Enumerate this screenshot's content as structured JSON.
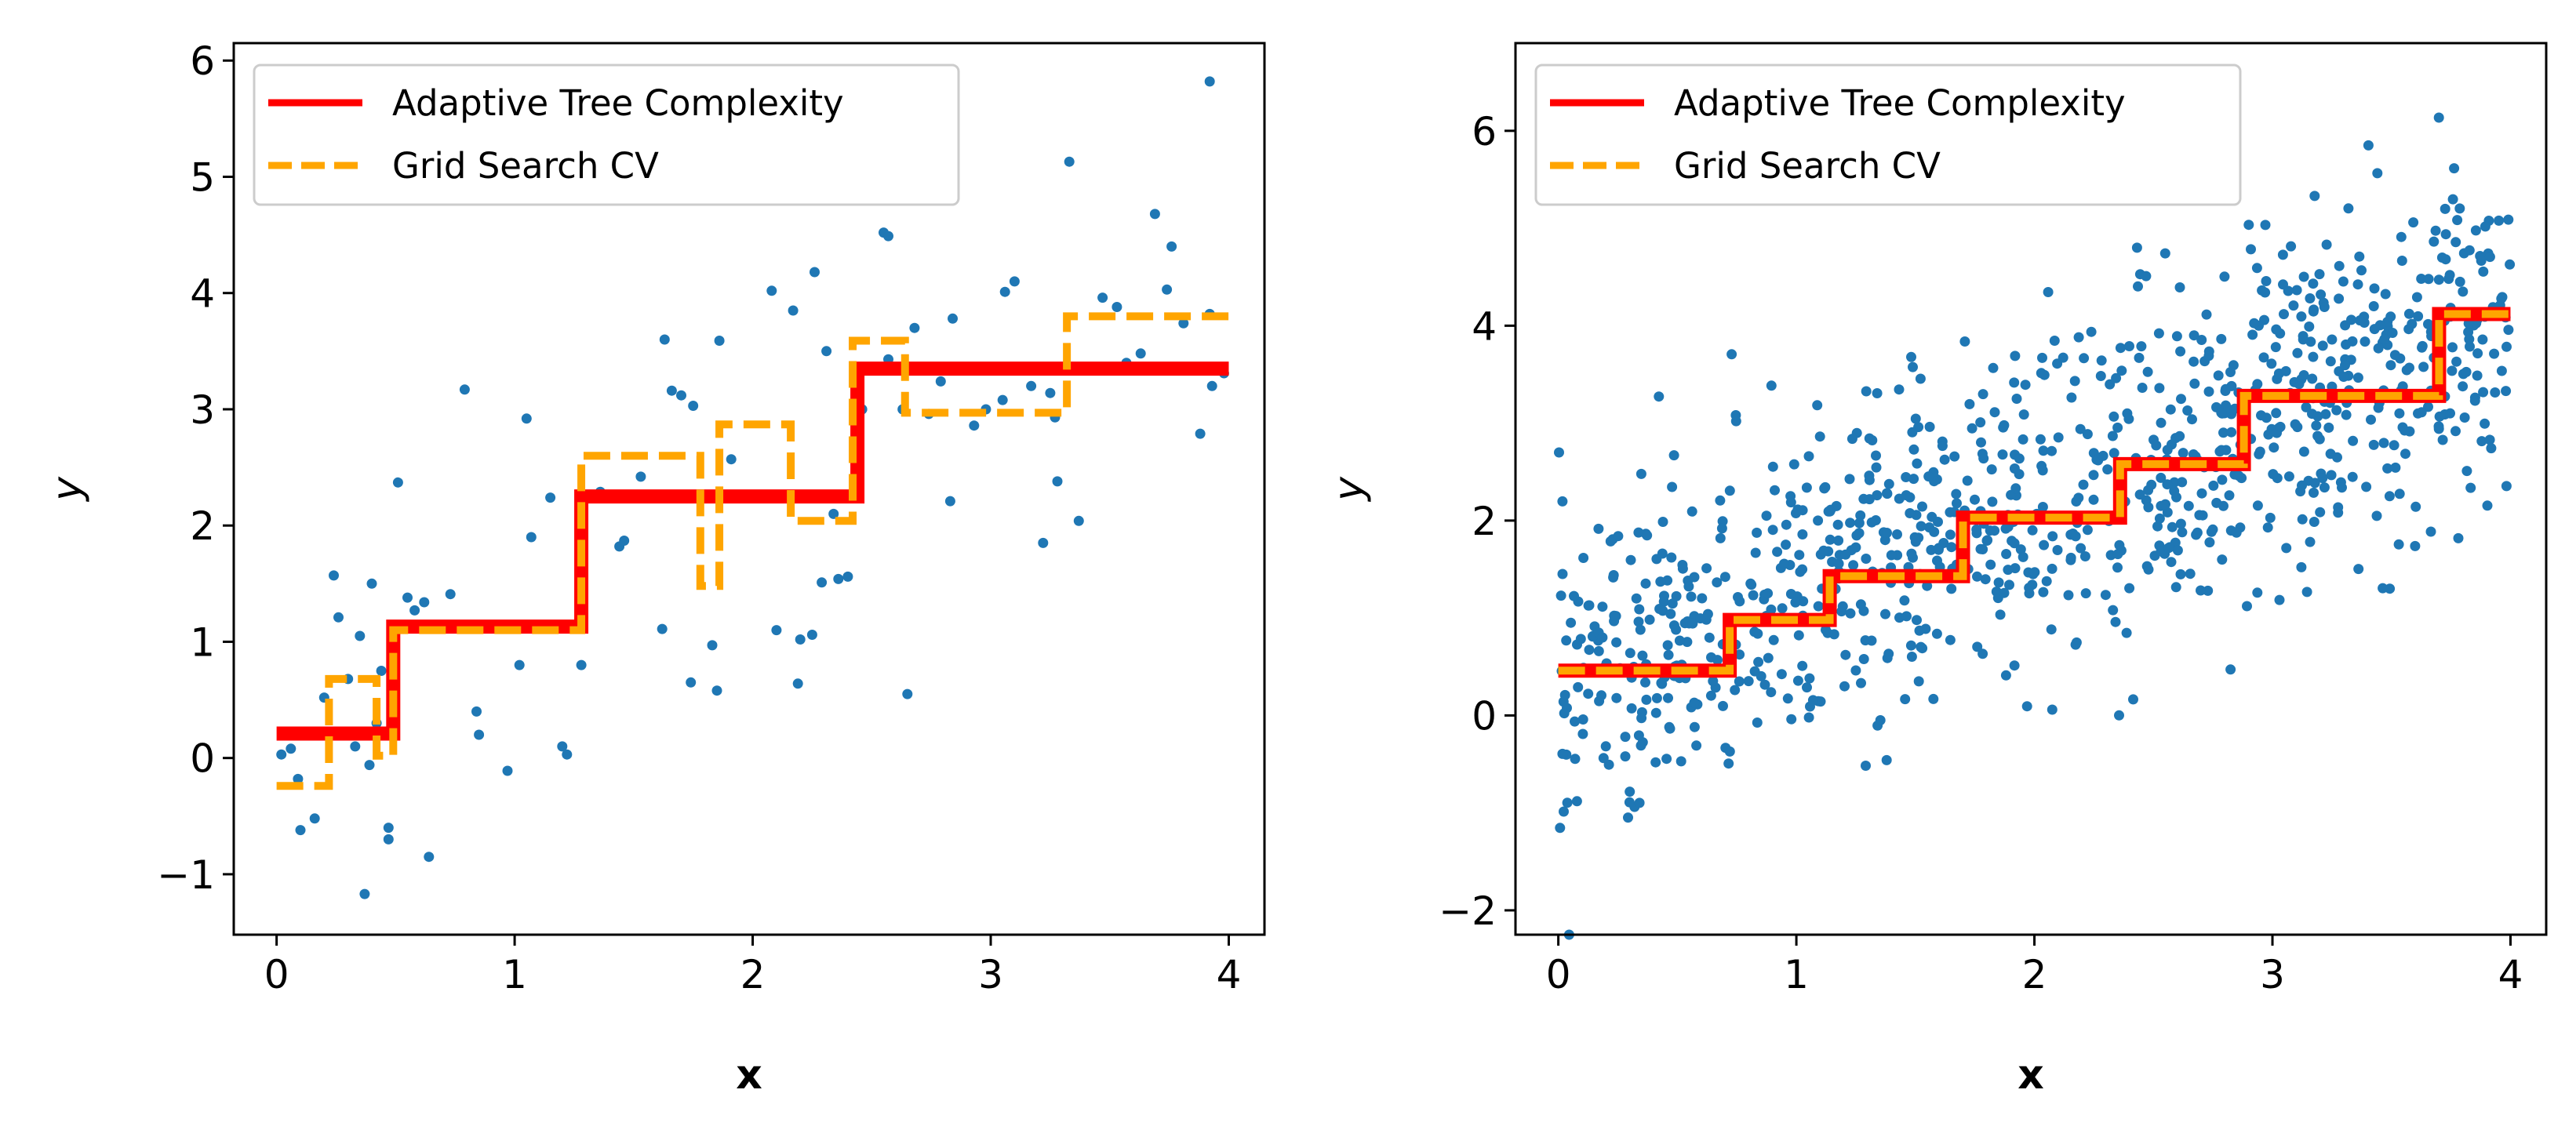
{
  "chart_data": [
    {
      "type": "scatter",
      "xlabel": "x",
      "ylabel": "y",
      "xlim": [
        -0.18,
        4.15
      ],
      "ylim": [
        -1.52,
        6.15
      ],
      "xticks": [
        0,
        1,
        2,
        3,
        4
      ],
      "yticks": [
        -1,
        0,
        1,
        2,
        3,
        4,
        5,
        6
      ],
      "grid": false,
      "legend_position": "top-left",
      "scatter_color": "#1f77b4",
      "points": [
        [
          0.02,
          0.03
        ],
        [
          0.06,
          0.08
        ],
        [
          0.09,
          -0.18
        ],
        [
          0.1,
          -0.62
        ],
        [
          0.13,
          0.22
        ],
        [
          0.16,
          -0.52
        ],
        [
          0.2,
          0.52
        ],
        [
          0.24,
          1.57
        ],
        [
          0.26,
          1.21
        ],
        [
          0.3,
          0.68
        ],
        [
          0.33,
          0.1
        ],
        [
          0.35,
          1.05
        ],
        [
          0.37,
          -1.17
        ],
        [
          0.39,
          -0.06
        ],
        [
          0.4,
          1.5
        ],
        [
          0.42,
          0.3
        ],
        [
          0.44,
          0.75
        ],
        [
          0.47,
          -0.6
        ],
        [
          0.47,
          -0.7
        ],
        [
          0.51,
          2.37
        ],
        [
          0.55,
          1.38
        ],
        [
          0.58,
          1.27
        ],
        [
          0.62,
          1.34
        ],
        [
          0.64,
          -0.85
        ],
        [
          0.73,
          1.41
        ],
        [
          0.79,
          3.17
        ],
        [
          0.84,
          0.4
        ],
        [
          0.85,
          0.2
        ],
        [
          0.97,
          -0.11
        ],
        [
          1.02,
          0.8
        ],
        [
          1.05,
          2.92
        ],
        [
          1.07,
          1.9
        ],
        [
          1.15,
          2.24
        ],
        [
          1.2,
          0.1
        ],
        [
          1.22,
          0.03
        ],
        [
          1.28,
          0.8
        ],
        [
          1.36,
          2.29
        ],
        [
          1.44,
          1.82
        ],
        [
          1.46,
          1.87
        ],
        [
          1.53,
          2.42
        ],
        [
          1.62,
          1.11
        ],
        [
          1.63,
          3.6
        ],
        [
          1.66,
          3.16
        ],
        [
          1.7,
          3.12
        ],
        [
          1.74,
          0.65
        ],
        [
          1.75,
          3.03
        ],
        [
          1.83,
          0.97
        ],
        [
          1.85,
          0.58
        ],
        [
          1.86,
          3.59
        ],
        [
          1.91,
          2.57
        ],
        [
          1.95,
          2.25
        ],
        [
          2.08,
          4.02
        ],
        [
          2.1,
          1.1
        ],
        [
          2.17,
          3.85
        ],
        [
          2.19,
          0.64
        ],
        [
          2.2,
          1.02
        ],
        [
          2.25,
          1.06
        ],
        [
          2.26,
          4.18
        ],
        [
          2.29,
          1.51
        ],
        [
          2.31,
          3.5
        ],
        [
          2.34,
          2.1
        ],
        [
          2.36,
          1.54
        ],
        [
          2.4,
          1.56
        ],
        [
          2.43,
          2.94
        ],
        [
          2.46,
          3.0
        ],
        [
          2.55,
          4.52
        ],
        [
          2.57,
          4.49
        ],
        [
          2.57,
          3.43
        ],
        [
          2.63,
          3.0
        ],
        [
          2.65,
          0.55
        ],
        [
          2.68,
          3.7
        ],
        [
          2.74,
          2.96
        ],
        [
          2.79,
          3.24
        ],
        [
          2.83,
          2.21
        ],
        [
          2.84,
          3.78
        ],
        [
          2.93,
          2.86
        ],
        [
          2.98,
          3.0
        ],
        [
          3.05,
          3.08
        ],
        [
          3.06,
          4.01
        ],
        [
          3.1,
          4.1
        ],
        [
          3.17,
          3.2
        ],
        [
          3.22,
          1.85
        ],
        [
          3.25,
          3.14
        ],
        [
          3.27,
          2.93
        ],
        [
          3.28,
          2.38
        ],
        [
          3.33,
          5.13
        ],
        [
          3.37,
          2.04
        ],
        [
          3.47,
          3.96
        ],
        [
          3.53,
          3.88
        ],
        [
          3.57,
          3.4
        ],
        [
          3.63,
          3.48
        ],
        [
          3.69,
          4.68
        ],
        [
          3.74,
          4.03
        ],
        [
          3.76,
          4.4
        ],
        [
          3.81,
          3.74
        ],
        [
          3.88,
          2.79
        ],
        [
          3.92,
          3.82
        ],
        [
          3.92,
          5.82
        ],
        [
          3.93,
          3.2
        ],
        [
          3.98,
          3.31
        ]
      ],
      "series": [
        {
          "name": "Adaptive Tree Complexity",
          "color": "#ff0000",
          "style": "solid",
          "steps": [
            [
              0.0,
              0.21
            ],
            [
              0.49,
              1.13
            ],
            [
              1.28,
              2.25
            ],
            [
              2.44,
              3.35
            ],
            [
              4.0,
              3.35
            ]
          ]
        },
        {
          "name": "Grid Search CV",
          "color": "#ffa500",
          "style": "dashed",
          "steps": [
            [
              0.0,
              -0.24
            ],
            [
              0.22,
              0.68
            ],
            [
              0.42,
              0.02
            ],
            [
              0.49,
              1.1
            ],
            [
              1.28,
              2.6
            ],
            [
              1.78,
              1.48
            ],
            [
              1.86,
              2.87
            ],
            [
              2.16,
              2.04
            ],
            [
              2.42,
              3.59
            ],
            [
              2.64,
              2.97
            ],
            [
              3.32,
              3.8
            ],
            [
              4.0,
              3.8
            ]
          ]
        }
      ]
    },
    {
      "type": "scatter",
      "xlabel": "x",
      "ylabel": "y",
      "xlim": [
        -0.18,
        4.15
      ],
      "ylim": [
        -2.25,
        6.9
      ],
      "xticks": [
        0,
        1,
        2,
        3,
        4
      ],
      "yticks": [
        -2,
        0,
        2,
        4,
        6
      ],
      "grid": false,
      "legend_position": "top-left",
      "scatter_color": "#1f77b4",
      "n_points": 1000,
      "noise_sd": 0.85,
      "series": [
        {
          "name": "Adaptive Tree Complexity",
          "color": "#ff0000",
          "style": "solid",
          "steps": [
            [
              0.0,
              0.46
            ],
            [
              0.72,
              0.98
            ],
            [
              1.14,
              1.43
            ],
            [
              1.7,
              2.03
            ],
            [
              2.36,
              2.58
            ],
            [
              2.88,
              3.28
            ],
            [
              3.7,
              4.12
            ],
            [
              4.0,
              4.12
            ]
          ]
        },
        {
          "name": "Grid Search CV",
          "color": "#ffa500",
          "style": "dashed",
          "steps": [
            [
              0.0,
              0.46
            ],
            [
              0.72,
              0.98
            ],
            [
              1.14,
              1.43
            ],
            [
              1.7,
              2.03
            ],
            [
              2.36,
              2.58
            ],
            [
              2.88,
              3.28
            ],
            [
              3.7,
              4.12
            ],
            [
              4.0,
              4.12
            ]
          ]
        }
      ]
    }
  ]
}
